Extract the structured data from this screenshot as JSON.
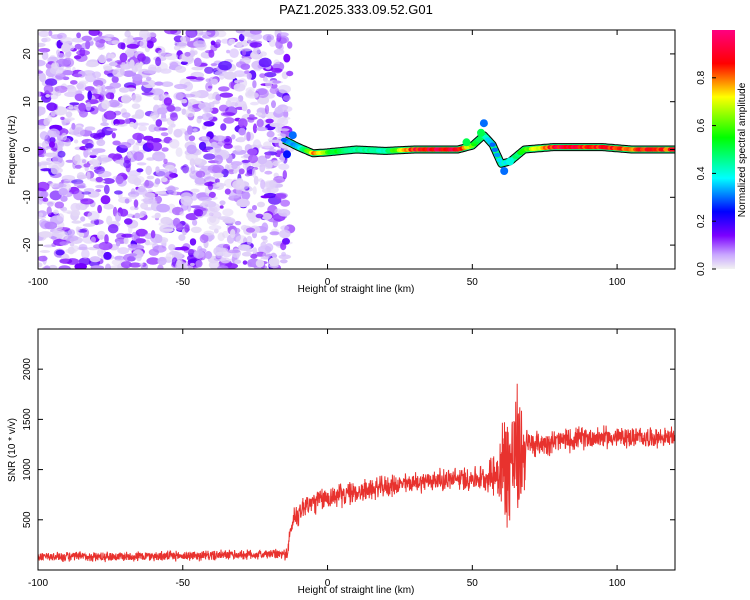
{
  "title": "PAZ1.2025.333.09.52.G01",
  "colors": {
    "snr_line": "#e8322e",
    "axis": "#000000",
    "colormap": [
      "#f2f2f2",
      "#7b00ff",
      "#0000ff",
      "#00ffff",
      "#00ff00",
      "#ffff00",
      "#ff0000",
      "#ff0080"
    ]
  },
  "chart_data": [
    {
      "type": "heatmap",
      "name": "spectrogram",
      "xlabel": "Height of straight line (km)",
      "ylabel": "Frequency (Hz)",
      "xlim": [
        -100,
        120
      ],
      "ylim": [
        -25,
        25
      ],
      "xticks": [
        -100,
        -50,
        0,
        50,
        100
      ],
      "yticks": [
        -20,
        -10,
        0,
        10,
        20
      ],
      "colorbar": {
        "label": "Normalized spectral amplitude",
        "range": [
          0.0,
          1.0
        ],
        "ticks": [
          0.0,
          0.2,
          0.4,
          0.6,
          0.8
        ]
      },
      "noise_region_km": [
        -100,
        -10
      ],
      "ridge": [
        {
          "x": -15,
          "f": 2.0,
          "a": 0.3
        },
        {
          "x": -10,
          "f": 0.5,
          "a": 0.35
        },
        {
          "x": -5,
          "f": -0.8,
          "a": 0.8
        },
        {
          "x": 0,
          "f": -0.6,
          "a": 0.6
        },
        {
          "x": 10,
          "f": 0.0,
          "a": 0.45
        },
        {
          "x": 20,
          "f": -0.3,
          "a": 0.45
        },
        {
          "x": 30,
          "f": 0.0,
          "a": 0.9
        },
        {
          "x": 45,
          "f": 0.0,
          "a": 0.95
        },
        {
          "x": 50,
          "f": 0.8,
          "a": 0.6
        },
        {
          "x": 54,
          "f": 3.0,
          "a": 0.45
        },
        {
          "x": 57,
          "f": 1.0,
          "a": 0.3
        },
        {
          "x": 60,
          "f": -3.0,
          "a": 0.4
        },
        {
          "x": 63,
          "f": -2.5,
          "a": 0.4
        },
        {
          "x": 68,
          "f": 0.0,
          "a": 0.6
        },
        {
          "x": 78,
          "f": 0.5,
          "a": 0.9
        },
        {
          "x": 95,
          "f": 0.5,
          "a": 0.9
        },
        {
          "x": 105,
          "f": 0.0,
          "a": 0.85
        },
        {
          "x": 120,
          "f": 0.0,
          "a": 0.85
        }
      ]
    },
    {
      "type": "line",
      "name": "snr",
      "xlabel": "Height of straight line (km)",
      "ylabel": "SNR (10 * v/v)",
      "xlim": [
        -100,
        120
      ],
      "ylim": [
        0,
        2400
      ],
      "xticks": [
        -100,
        -50,
        0,
        50,
        100
      ],
      "yticks": [
        500,
        1000,
        1500,
        2000
      ],
      "trend": [
        {
          "x": -100,
          "y": 130
        },
        {
          "x": -50,
          "y": 140
        },
        {
          "x": -14,
          "y": 160
        },
        {
          "x": -12,
          "y": 500
        },
        {
          "x": -8,
          "y": 640
        },
        {
          "x": 0,
          "y": 720
        },
        {
          "x": 20,
          "y": 830
        },
        {
          "x": 35,
          "y": 890
        },
        {
          "x": 55,
          "y": 920
        },
        {
          "x": 60,
          "y": 1000
        },
        {
          "x": 70,
          "y": 1250
        },
        {
          "x": 90,
          "y": 1320
        },
        {
          "x": 120,
          "y": 1320
        }
      ],
      "noise": [
        {
          "x": -100,
          "amp": 60
        },
        {
          "x": -15,
          "amp": 60
        },
        {
          "x": -12,
          "amp": 150
        },
        {
          "x": 30,
          "amp": 120
        },
        {
          "x": 55,
          "amp": 150
        },
        {
          "x": 58,
          "amp": 300
        },
        {
          "x": 62,
          "amp": 800
        },
        {
          "x": 66,
          "amp": 800
        },
        {
          "x": 70,
          "amp": 150
        },
        {
          "x": 120,
          "amp": 110
        }
      ]
    }
  ]
}
